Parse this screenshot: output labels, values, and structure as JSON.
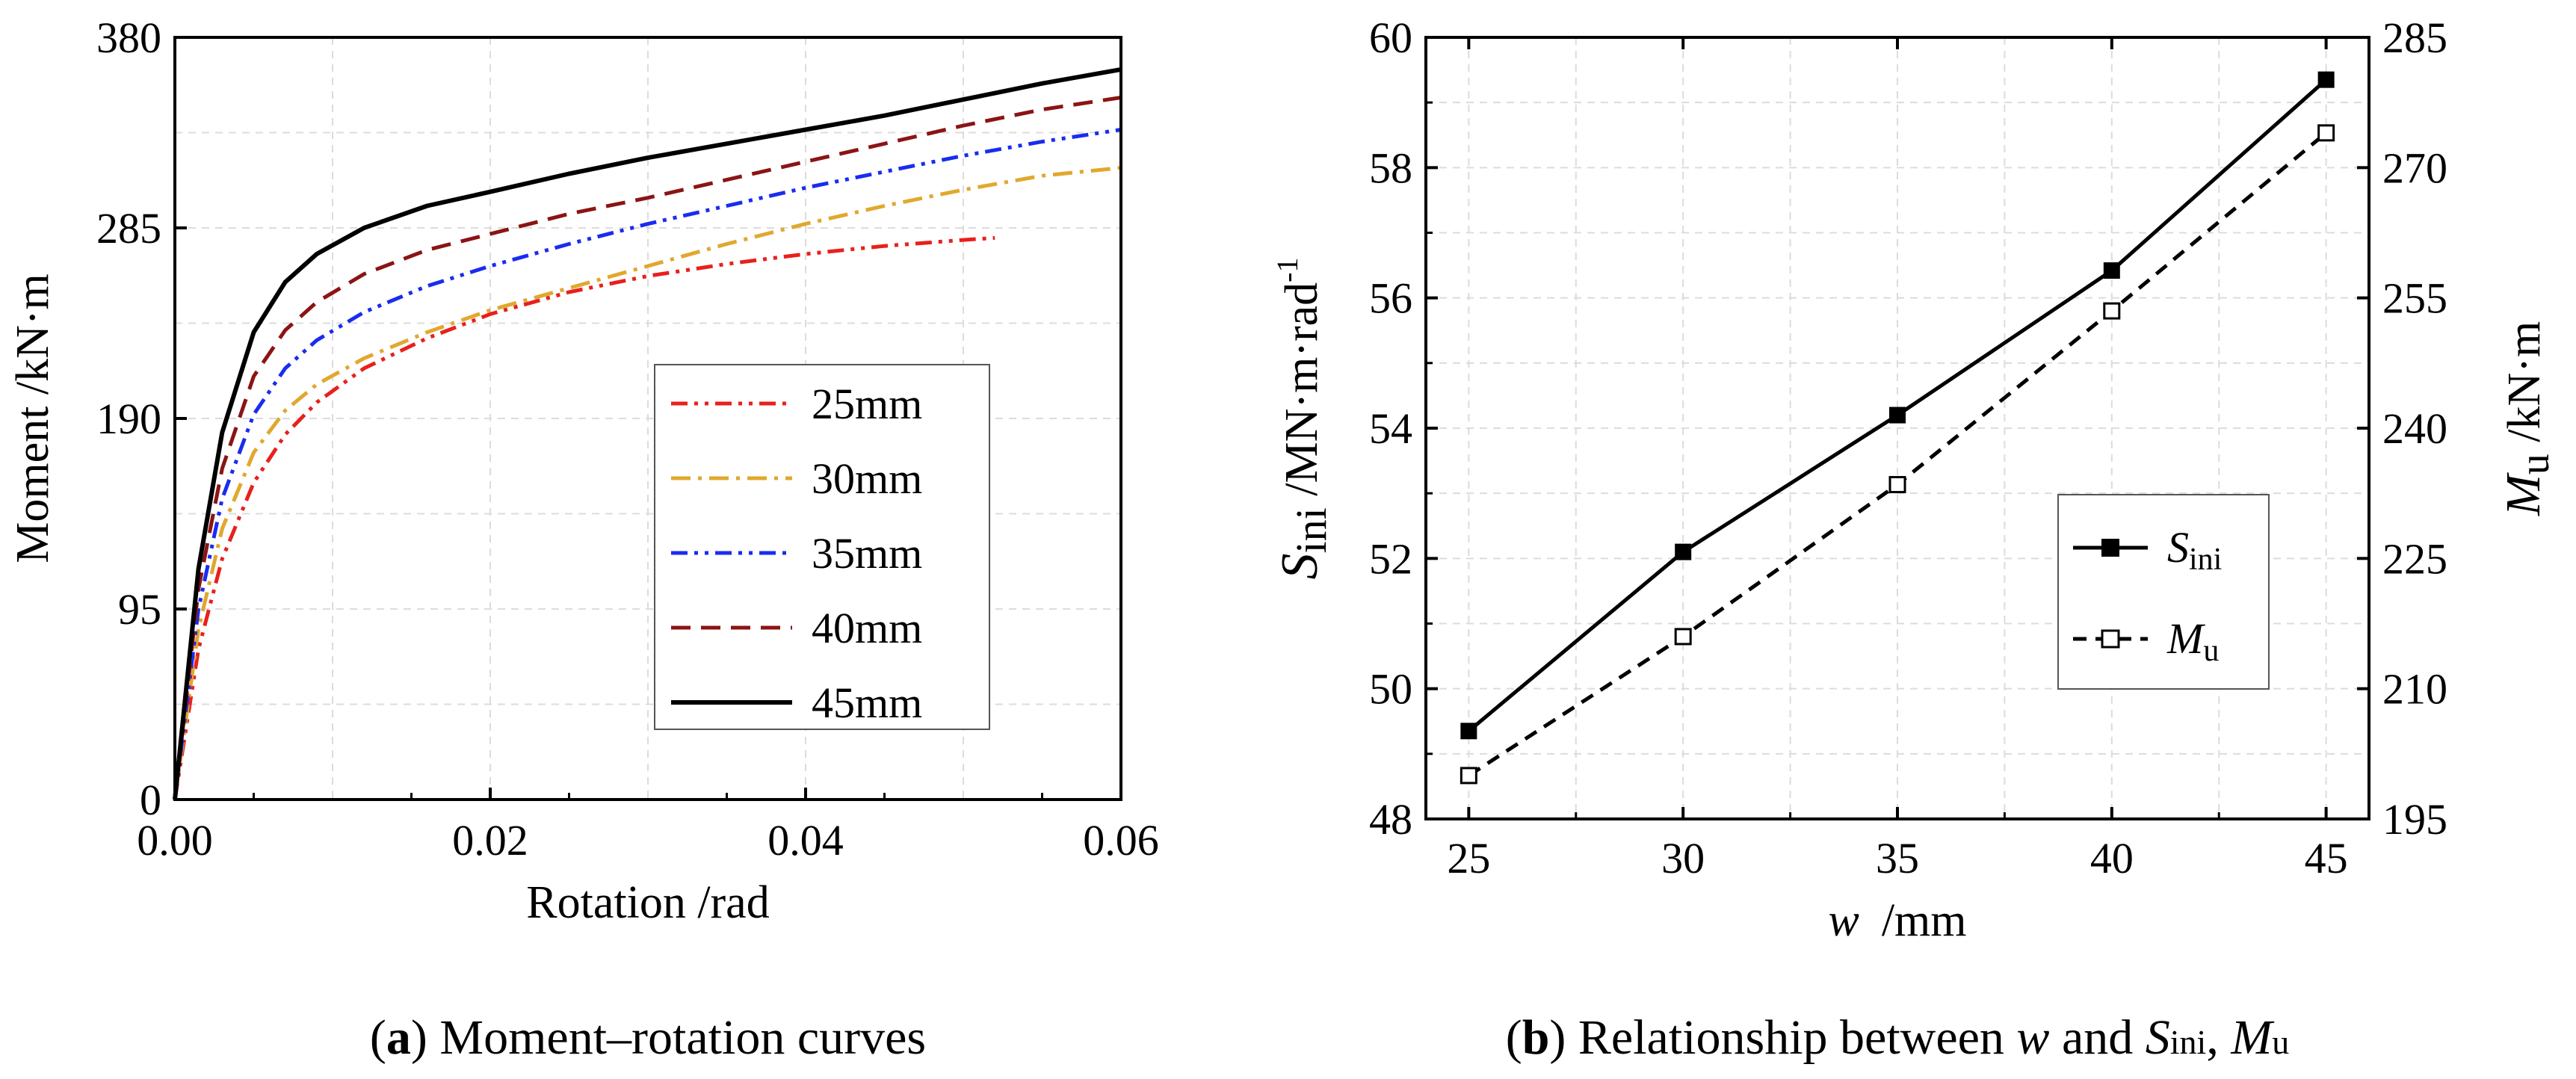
{
  "chart_data": [
    {
      "id": "a",
      "type": "line",
      "caption_letter": "a",
      "caption_text": "Moment–rotation curves",
      "xlabel": "Rotation /rad",
      "ylabel": "Moment /kN·m",
      "xlim": [
        0,
        0.06
      ],
      "ylim": [
        0,
        380
      ],
      "xticks": [
        "0.00",
        "0.02",
        "0.04",
        "0.06"
      ],
      "yticks": [
        "0",
        "95",
        "190",
        "285",
        "380"
      ],
      "grid": true,
      "legend_position": "center-right",
      "series": [
        {
          "name": "25mm",
          "color": "#e8201c",
          "dash": "dash-dot-dot",
          "x": [
            0,
            0.0015,
            0.003,
            0.005,
            0.007,
            0.009,
            0.012,
            0.016,
            0.02,
            0.025,
            0.03,
            0.035,
            0.04,
            0.045,
            0.05,
            0.052
          ],
          "y": [
            0,
            75,
            120,
            158,
            182,
            198,
            215,
            230,
            242,
            253,
            261,
            267,
            272,
            276,
            279,
            280
          ]
        },
        {
          "name": "30mm",
          "color": "#e0a82e",
          "dash": "dash-dot",
          "x": [
            0,
            0.0015,
            0.003,
            0.005,
            0.007,
            0.009,
            0.012,
            0.016,
            0.02,
            0.025,
            0.03,
            0.035,
            0.04,
            0.045,
            0.05,
            0.055,
            0.06
          ],
          "y": [
            0,
            85,
            135,
            173,
            194,
            207,
            220,
            233,
            244,
            255,
            266,
            277,
            287,
            296,
            304,
            311,
            315
          ]
        },
        {
          "name": "35mm",
          "color": "#1a2cf0",
          "dash": "dash-dot-dot",
          "x": [
            0,
            0.0015,
            0.003,
            0.005,
            0.007,
            0.009,
            0.012,
            0.016,
            0.02,
            0.025,
            0.03,
            0.035,
            0.04,
            0.045,
            0.05,
            0.055,
            0.06
          ],
          "y": [
            0,
            95,
            150,
            192,
            215,
            229,
            243,
            256,
            266,
            277,
            287,
            296,
            305,
            313,
            321,
            328,
            334
          ]
        },
        {
          "name": "40mm",
          "color": "#8b1414",
          "dash": "dash",
          "x": [
            0,
            0.0015,
            0.003,
            0.005,
            0.007,
            0.009,
            0.012,
            0.016,
            0.02,
            0.025,
            0.03,
            0.035,
            0.04,
            0.045,
            0.05,
            0.055,
            0.06
          ],
          "y": [
            0,
            105,
            165,
            211,
            234,
            248,
            262,
            274,
            282,
            292,
            300,
            309,
            318,
            327,
            336,
            344,
            350
          ]
        },
        {
          "name": "45mm",
          "color": "#000000",
          "dash": "solid",
          "x": [
            0,
            0.0015,
            0.003,
            0.005,
            0.007,
            0.009,
            0.012,
            0.016,
            0.02,
            0.025,
            0.03,
            0.035,
            0.04,
            0.045,
            0.05,
            0.055,
            0.06
          ],
          "y": [
            0,
            115,
            183,
            233,
            258,
            272,
            285,
            296,
            303,
            312,
            320,
            327,
            334,
            341,
            349,
            357,
            364
          ]
        }
      ]
    },
    {
      "id": "b",
      "type": "line",
      "caption_letter": "b",
      "caption_text": "Relationship between ",
      "caption_w": "w",
      "caption_and": " and ",
      "caption_S": "S",
      "caption_S_sub": "ini",
      "caption_comma": ", ",
      "caption_M": "M",
      "caption_M_sub": "u",
      "xlabel_var": "w",
      "xlabel_unit": "/mm",
      "ylabel_left_var": "S",
      "ylabel_left_sub": "ini",
      "ylabel_left_unit": " /MN·m·rad",
      "ylabel_left_sup": "-1",
      "ylabel_right_var": "M",
      "ylabel_right_sub": "u",
      "ylabel_right_unit": " /kN·m",
      "categories": [
        25,
        30,
        35,
        40,
        45
      ],
      "xlim": [
        24,
        46
      ],
      "ylim_left": [
        48,
        60
      ],
      "ylim_right": [
        195,
        285
      ],
      "xticks": [
        "25",
        "30",
        "35",
        "40",
        "45"
      ],
      "yticks_left": [
        "48",
        "50",
        "52",
        "54",
        "56",
        "58",
        "60"
      ],
      "yticks_right": [
        "195",
        "210",
        "225",
        "240",
        "255",
        "270",
        "285"
      ],
      "grid": true,
      "legend_position": "center-right",
      "series": [
        {
          "name": "S",
          "name_sub": "ini",
          "axis": "left",
          "dash": "solid",
          "marker": "filled-square",
          "values": [
            49.35,
            52.1,
            54.2,
            56.42,
            59.35
          ]
        },
        {
          "name": "M",
          "name_sub": "u",
          "axis": "right",
          "dash": "dash",
          "marker": "open-square",
          "values": [
            200,
            216,
            233.5,
            253.5,
            274
          ]
        }
      ]
    }
  ]
}
